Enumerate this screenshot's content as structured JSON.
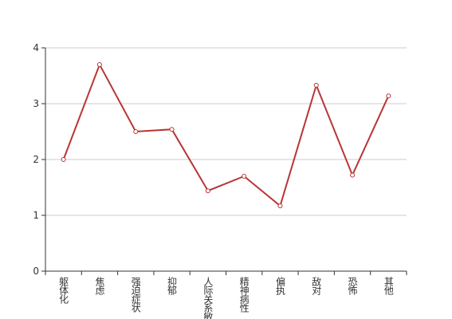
{
  "chart_data": {
    "type": "line",
    "categories": [
      "躯体化",
      "焦虑",
      "强迫症状",
      "抑郁",
      "人际关系敏感",
      "精神病性",
      "偏执",
      "敌对",
      "恐怖",
      "其他"
    ],
    "series": [
      {
        "color": "#b83535",
        "values": [
          2.0,
          3.7,
          2.5,
          2.54,
          1.44,
          1.7,
          1.17,
          3.33,
          1.72,
          3.14
        ]
      }
    ],
    "ylim": [
      0,
      4
    ],
    "yticks": [
      0,
      1,
      2,
      3,
      4
    ],
    "grid": true
  }
}
